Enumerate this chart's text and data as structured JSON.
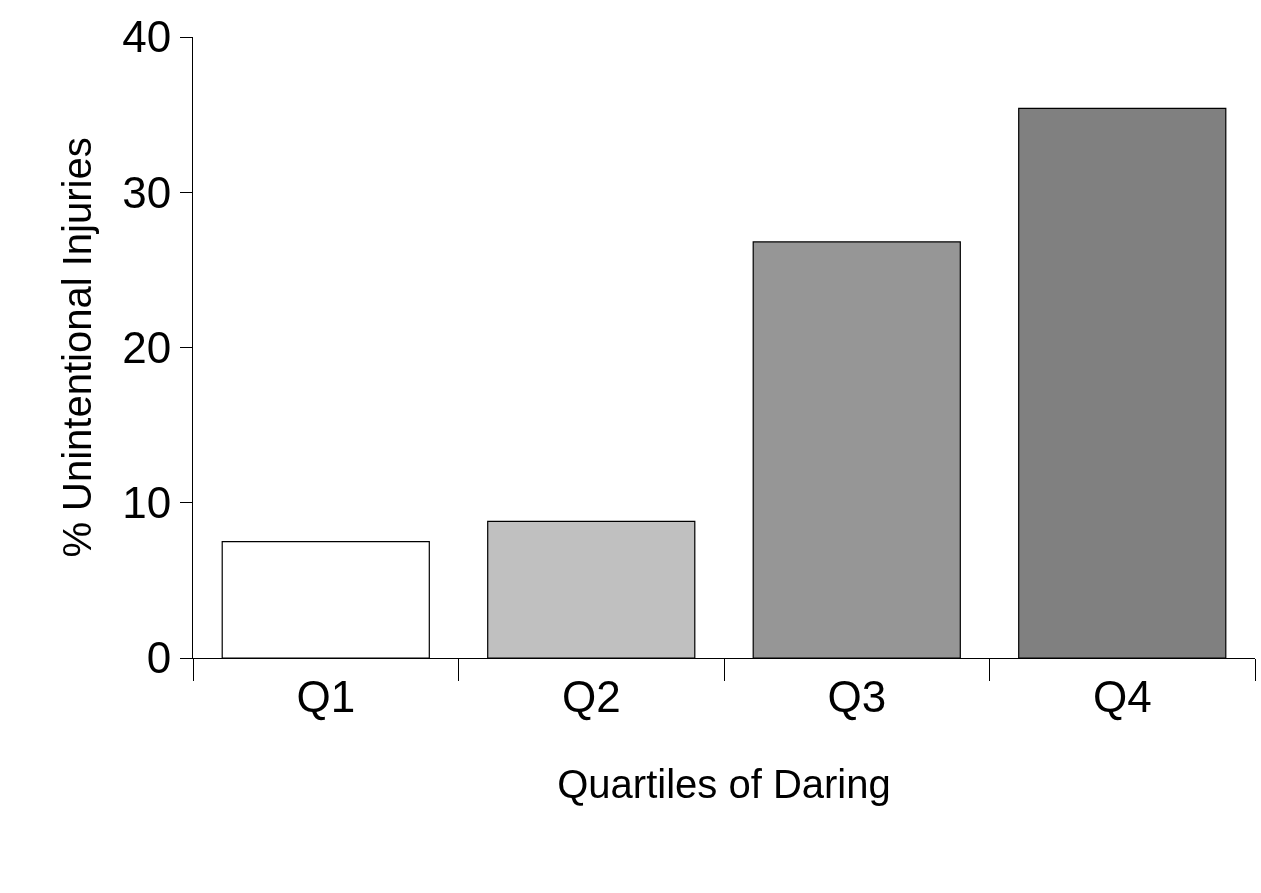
{
  "chart_data": {
    "type": "bar",
    "xlabel": "Quartiles of Daring",
    "ylabel": "% Unintentional Injuries",
    "categories": [
      "Q1",
      "Q2",
      "Q3",
      "Q4"
    ],
    "values": [
      7.5,
      8.8,
      26.8,
      35.4
    ],
    "colors": [
      "#ffffff",
      "#c0c0c0",
      "#969696",
      "#808080"
    ],
    "ylim": [
      0,
      40
    ],
    "yticks": [
      0,
      10,
      20,
      30,
      40
    ]
  }
}
